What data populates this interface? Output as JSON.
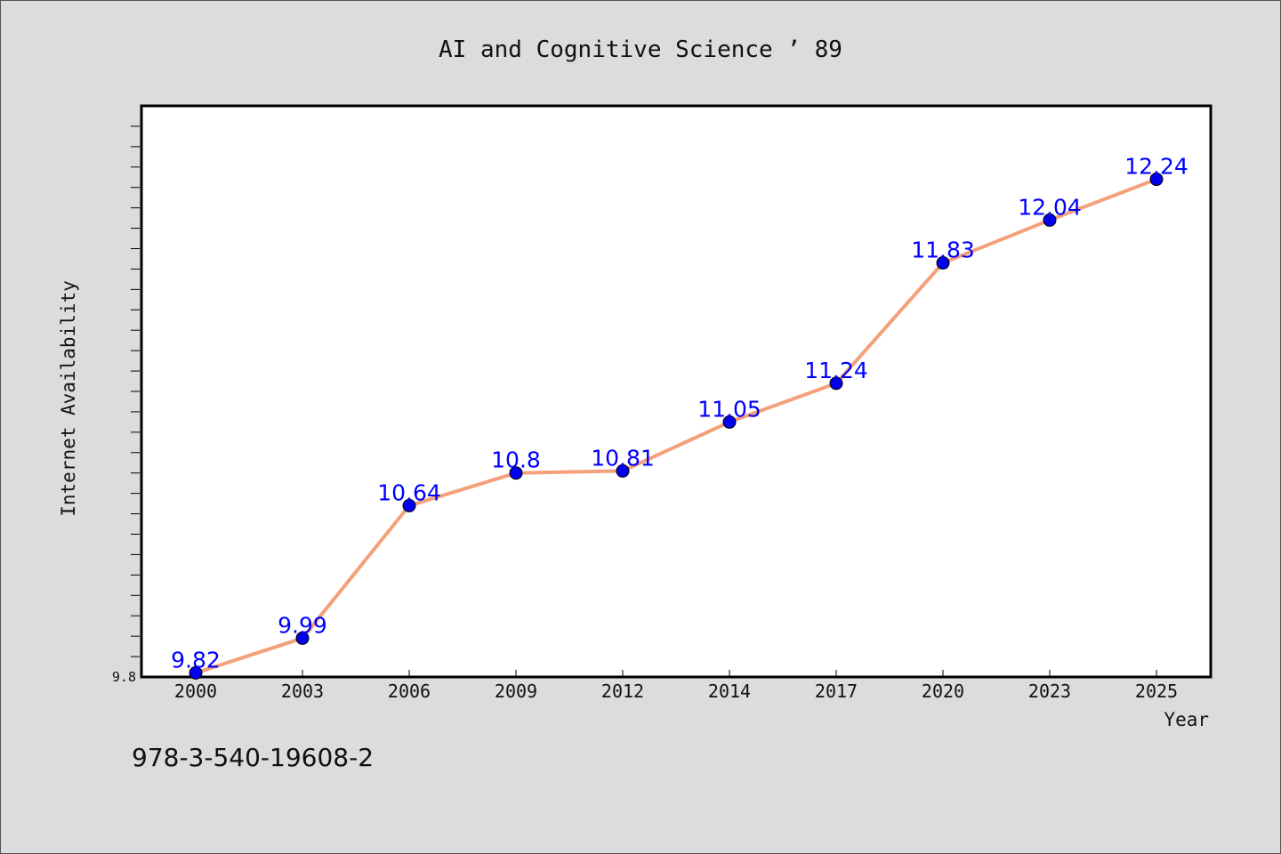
{
  "chart_data": {
    "type": "line",
    "title": "AI and Cognitive Science ’ 89",
    "xlabel": "Year",
    "ylabel": "Internet Availability",
    "categories": [
      "2000",
      "2003",
      "2006",
      "2009",
      "2012",
      "2014",
      "2017",
      "2020",
      "2023",
      "2025"
    ],
    "series": [
      {
        "values": [
          9.82,
          9.99,
          10.64,
          10.8,
          10.81,
          11.05,
          11.24,
          11.83,
          12.04,
          12.24
        ],
        "data_labels": [
          "9.82",
          "9.99",
          "10.64",
          "10.8",
          "10.81",
          "11.05",
          "11.24",
          "11.83",
          "12.04",
          "12.24"
        ],
        "line_color": "#f4a07a",
        "marker_color": "#0000ee"
      }
    ],
    "ylim": [
      9.8,
      12.6
    ],
    "y_tick_labels": [
      "9.8"
    ],
    "grid": false,
    "legend": "none"
  },
  "footer": {
    "isbn": "978-3-540-19608-2"
  }
}
